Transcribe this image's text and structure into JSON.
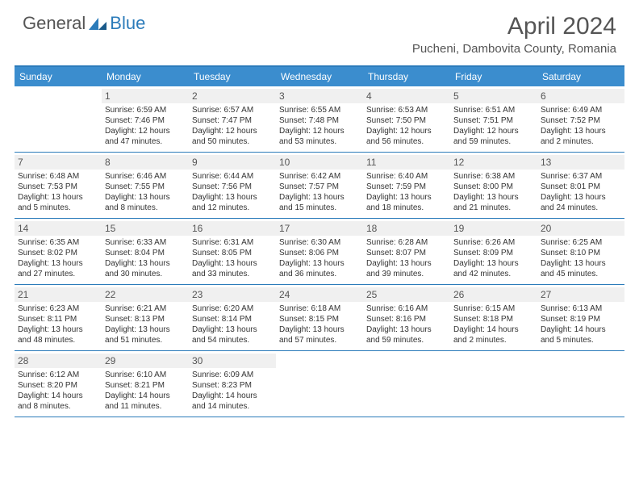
{
  "logo": {
    "general": "General",
    "blue": "Blue"
  },
  "title": "April 2024",
  "location": "Pucheni, Dambovita County, Romania",
  "colors": {
    "header_bg": "#3b8dce",
    "border": "#2b7bba",
    "daynum_bg": "#f0f0f0",
    "text": "#555"
  },
  "weekdays": [
    "Sunday",
    "Monday",
    "Tuesday",
    "Wednesday",
    "Thursday",
    "Friday",
    "Saturday"
  ],
  "weeks": [
    [
      {
        "num": "",
        "lines": []
      },
      {
        "num": "1",
        "lines": [
          "Sunrise: 6:59 AM",
          "Sunset: 7:46 PM",
          "Daylight: 12 hours",
          "and 47 minutes."
        ]
      },
      {
        "num": "2",
        "lines": [
          "Sunrise: 6:57 AM",
          "Sunset: 7:47 PM",
          "Daylight: 12 hours",
          "and 50 minutes."
        ]
      },
      {
        "num": "3",
        "lines": [
          "Sunrise: 6:55 AM",
          "Sunset: 7:48 PM",
          "Daylight: 12 hours",
          "and 53 minutes."
        ]
      },
      {
        "num": "4",
        "lines": [
          "Sunrise: 6:53 AM",
          "Sunset: 7:50 PM",
          "Daylight: 12 hours",
          "and 56 minutes."
        ]
      },
      {
        "num": "5",
        "lines": [
          "Sunrise: 6:51 AM",
          "Sunset: 7:51 PM",
          "Daylight: 12 hours",
          "and 59 minutes."
        ]
      },
      {
        "num": "6",
        "lines": [
          "Sunrise: 6:49 AM",
          "Sunset: 7:52 PM",
          "Daylight: 13 hours",
          "and 2 minutes."
        ]
      }
    ],
    [
      {
        "num": "7",
        "lines": [
          "Sunrise: 6:48 AM",
          "Sunset: 7:53 PM",
          "Daylight: 13 hours",
          "and 5 minutes."
        ]
      },
      {
        "num": "8",
        "lines": [
          "Sunrise: 6:46 AM",
          "Sunset: 7:55 PM",
          "Daylight: 13 hours",
          "and 8 minutes."
        ]
      },
      {
        "num": "9",
        "lines": [
          "Sunrise: 6:44 AM",
          "Sunset: 7:56 PM",
          "Daylight: 13 hours",
          "and 12 minutes."
        ]
      },
      {
        "num": "10",
        "lines": [
          "Sunrise: 6:42 AM",
          "Sunset: 7:57 PM",
          "Daylight: 13 hours",
          "and 15 minutes."
        ]
      },
      {
        "num": "11",
        "lines": [
          "Sunrise: 6:40 AM",
          "Sunset: 7:59 PM",
          "Daylight: 13 hours",
          "and 18 minutes."
        ]
      },
      {
        "num": "12",
        "lines": [
          "Sunrise: 6:38 AM",
          "Sunset: 8:00 PM",
          "Daylight: 13 hours",
          "and 21 minutes."
        ]
      },
      {
        "num": "13",
        "lines": [
          "Sunrise: 6:37 AM",
          "Sunset: 8:01 PM",
          "Daylight: 13 hours",
          "and 24 minutes."
        ]
      }
    ],
    [
      {
        "num": "14",
        "lines": [
          "Sunrise: 6:35 AM",
          "Sunset: 8:02 PM",
          "Daylight: 13 hours",
          "and 27 minutes."
        ]
      },
      {
        "num": "15",
        "lines": [
          "Sunrise: 6:33 AM",
          "Sunset: 8:04 PM",
          "Daylight: 13 hours",
          "and 30 minutes."
        ]
      },
      {
        "num": "16",
        "lines": [
          "Sunrise: 6:31 AM",
          "Sunset: 8:05 PM",
          "Daylight: 13 hours",
          "and 33 minutes."
        ]
      },
      {
        "num": "17",
        "lines": [
          "Sunrise: 6:30 AM",
          "Sunset: 8:06 PM",
          "Daylight: 13 hours",
          "and 36 minutes."
        ]
      },
      {
        "num": "18",
        "lines": [
          "Sunrise: 6:28 AM",
          "Sunset: 8:07 PM",
          "Daylight: 13 hours",
          "and 39 minutes."
        ]
      },
      {
        "num": "19",
        "lines": [
          "Sunrise: 6:26 AM",
          "Sunset: 8:09 PM",
          "Daylight: 13 hours",
          "and 42 minutes."
        ]
      },
      {
        "num": "20",
        "lines": [
          "Sunrise: 6:25 AM",
          "Sunset: 8:10 PM",
          "Daylight: 13 hours",
          "and 45 minutes."
        ]
      }
    ],
    [
      {
        "num": "21",
        "lines": [
          "Sunrise: 6:23 AM",
          "Sunset: 8:11 PM",
          "Daylight: 13 hours",
          "and 48 minutes."
        ]
      },
      {
        "num": "22",
        "lines": [
          "Sunrise: 6:21 AM",
          "Sunset: 8:13 PM",
          "Daylight: 13 hours",
          "and 51 minutes."
        ]
      },
      {
        "num": "23",
        "lines": [
          "Sunrise: 6:20 AM",
          "Sunset: 8:14 PM",
          "Daylight: 13 hours",
          "and 54 minutes."
        ]
      },
      {
        "num": "24",
        "lines": [
          "Sunrise: 6:18 AM",
          "Sunset: 8:15 PM",
          "Daylight: 13 hours",
          "and 57 minutes."
        ]
      },
      {
        "num": "25",
        "lines": [
          "Sunrise: 6:16 AM",
          "Sunset: 8:16 PM",
          "Daylight: 13 hours",
          "and 59 minutes."
        ]
      },
      {
        "num": "26",
        "lines": [
          "Sunrise: 6:15 AM",
          "Sunset: 8:18 PM",
          "Daylight: 14 hours",
          "and 2 minutes."
        ]
      },
      {
        "num": "27",
        "lines": [
          "Sunrise: 6:13 AM",
          "Sunset: 8:19 PM",
          "Daylight: 14 hours",
          "and 5 minutes."
        ]
      }
    ],
    [
      {
        "num": "28",
        "lines": [
          "Sunrise: 6:12 AM",
          "Sunset: 8:20 PM",
          "Daylight: 14 hours",
          "and 8 minutes."
        ]
      },
      {
        "num": "29",
        "lines": [
          "Sunrise: 6:10 AM",
          "Sunset: 8:21 PM",
          "Daylight: 14 hours",
          "and 11 minutes."
        ]
      },
      {
        "num": "30",
        "lines": [
          "Sunrise: 6:09 AM",
          "Sunset: 8:23 PM",
          "Daylight: 14 hours",
          "and 14 minutes."
        ]
      },
      {
        "num": "",
        "lines": []
      },
      {
        "num": "",
        "lines": []
      },
      {
        "num": "",
        "lines": []
      },
      {
        "num": "",
        "lines": []
      }
    ]
  ]
}
